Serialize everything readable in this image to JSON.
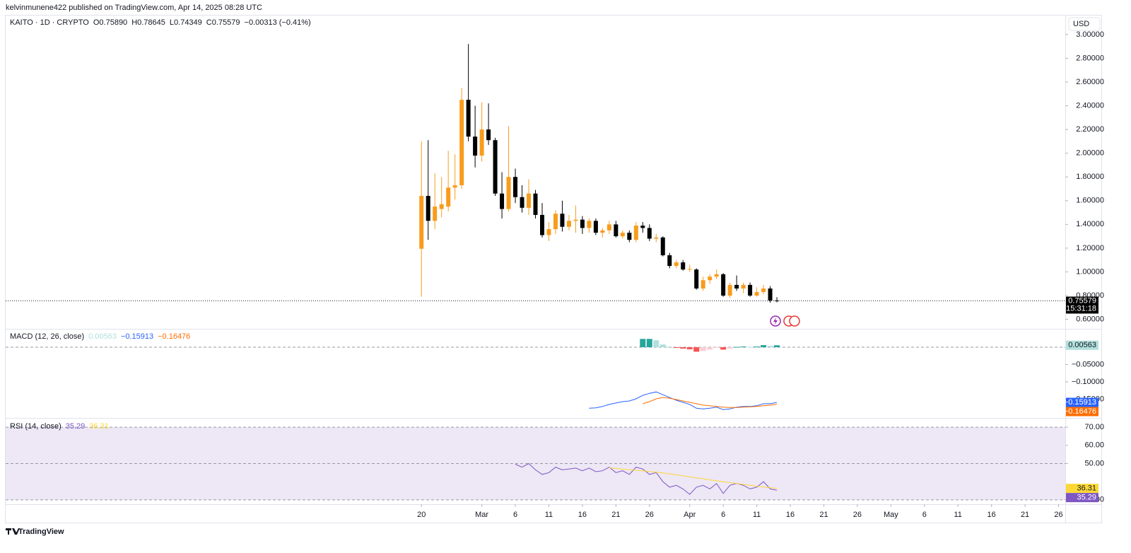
{
  "header": "kelvinmunene422 published on TradingView.com, Apr 14, 2025 08:28 UTC",
  "footer": "TradingView",
  "chart_data": [
    {
      "type": "candlestick",
      "currency": "USD",
      "symbol": "KAITO · 1D · CRYPTO",
      "legend_items": [
        "O0.75890",
        "H0.78645",
        "L0.74349",
        "C0.75579",
        "−0.00313 (−0.41%)"
      ],
      "last_price_label": "0.75579",
      "countdown": "15:31:18",
      "up_color": "#f89c1c",
      "down_color": "#000000",
      "x": [
        "2025-02-20",
        "2025-02-21",
        "2025-02-22",
        "2025-02-23",
        "2025-02-24",
        "2025-02-25",
        "2025-02-26",
        "2025-02-27",
        "2025-02-28",
        "2025-03-01",
        "2025-03-02",
        "2025-03-03",
        "2025-03-04",
        "2025-03-05",
        "2025-03-06",
        "2025-03-07",
        "2025-03-08",
        "2025-03-09",
        "2025-03-10",
        "2025-03-11",
        "2025-03-12",
        "2025-03-13",
        "2025-03-14",
        "2025-03-15",
        "2025-03-16",
        "2025-03-17",
        "2025-03-18",
        "2025-03-19",
        "2025-03-20",
        "2025-03-21",
        "2025-03-22",
        "2025-03-23",
        "2025-03-24",
        "2025-03-25",
        "2025-03-26",
        "2025-03-27",
        "2025-03-28",
        "2025-03-29",
        "2025-03-30",
        "2025-03-31",
        "2025-04-01",
        "2025-04-02",
        "2025-04-03",
        "2025-04-04",
        "2025-04-05",
        "2025-04-06",
        "2025-04-07",
        "2025-04-08",
        "2025-04-09",
        "2025-04-10",
        "2025-04-11",
        "2025-04-12",
        "2025-04-13",
        "2025-04-14"
      ],
      "open": [
        1.195,
        1.64,
        1.43,
        1.53,
        1.55,
        1.71,
        1.73,
        2.45,
        2.14,
        1.98,
        2.2,
        2.11,
        1.66,
        1.53,
        1.8,
        1.63,
        1.54,
        1.66,
        1.48,
        1.31,
        1.36,
        1.49,
        1.38,
        1.43,
        1.44,
        1.37,
        1.43,
        1.33,
        1.35,
        1.4,
        1.3,
        1.33,
        1.27,
        1.39,
        1.37,
        1.28,
        1.29,
        1.14,
        1.05,
        1.08,
        1.02,
        1.02,
        0.86,
        0.93,
        0.96,
        0.98,
        0.8,
        0.89,
        0.86,
        0.89,
        0.8,
        0.83,
        0.86,
        0.7589
      ],
      "high": [
        2.1,
        2.11,
        1.83,
        1.8,
        2.02,
        1.99,
        2.55,
        2.92,
        2.4,
        2.43,
        2.42,
        2.13,
        1.84,
        2.23,
        1.87,
        1.73,
        1.78,
        1.69,
        1.58,
        1.42,
        1.52,
        1.6,
        1.48,
        1.56,
        1.47,
        1.45,
        1.45,
        1.37,
        1.43,
        1.43,
        1.35,
        1.35,
        1.42,
        1.42,
        1.4,
        1.32,
        1.3,
        1.16,
        1.1,
        1.1,
        1.06,
        1.03,
        0.96,
        0.98,
        1.02,
        0.99,
        0.91,
        0.97,
        0.91,
        0.91,
        0.87,
        0.89,
        0.88,
        0.78645
      ],
      "low": [
        0.79,
        1.27,
        1.36,
        1.46,
        1.51,
        1.61,
        1.7,
        2.1,
        1.88,
        1.93,
        2.07,
        1.64,
        1.45,
        1.51,
        1.58,
        1.5,
        1.48,
        1.45,
        1.29,
        1.26,
        1.32,
        1.34,
        1.35,
        1.33,
        1.32,
        1.33,
        1.31,
        1.29,
        1.32,
        1.29,
        1.28,
        1.25,
        1.25,
        1.33,
        1.26,
        1.25,
        1.13,
        1.03,
        1.03,
        1.01,
        1.0,
        0.85,
        0.84,
        0.9,
        0.94,
        0.79,
        0.78,
        0.84,
        0.82,
        0.79,
        0.79,
        0.81,
        0.74,
        0.74349
      ],
      "close": [
        1.64,
        1.43,
        1.55,
        1.57,
        1.71,
        1.73,
        2.45,
        2.14,
        1.98,
        2.2,
        2.11,
        1.66,
        1.53,
        1.8,
        1.63,
        1.54,
        1.66,
        1.48,
        1.31,
        1.36,
        1.49,
        1.38,
        1.43,
        1.44,
        1.37,
        1.43,
        1.33,
        1.35,
        1.4,
        1.3,
        1.33,
        1.27,
        1.39,
        1.37,
        1.28,
        1.29,
        1.14,
        1.05,
        1.08,
        1.02,
        1.025,
        0.86,
        0.93,
        0.96,
        0.98,
        0.8,
        0.89,
        0.86,
        0.89,
        0.8,
        0.83,
        0.86,
        0.7589,
        0.75579
      ],
      "xlim": [
        "2024-12-20",
        "2025-05-27"
      ],
      "xticks": [
        {
          "value": "2025-02-20",
          "label": "20"
        },
        {
          "value": "2025-03-01",
          "label": "Mar"
        },
        {
          "value": "2025-03-06",
          "label": "6"
        },
        {
          "value": "2025-03-11",
          "label": "11"
        },
        {
          "value": "2025-03-16",
          "label": "16"
        },
        {
          "value": "2025-03-21",
          "label": "21"
        },
        {
          "value": "2025-03-26",
          "label": "26"
        },
        {
          "value": "2025-04-01",
          "label": "Apr"
        },
        {
          "value": "2025-04-06",
          "label": "6"
        },
        {
          "value": "2025-04-11",
          "label": "11"
        },
        {
          "value": "2025-04-16",
          "label": "16"
        },
        {
          "value": "2025-04-21",
          "label": "21"
        },
        {
          "value": "2025-04-26",
          "label": "26"
        },
        {
          "value": "2025-05-01",
          "label": "May"
        },
        {
          "value": "2025-05-06",
          "label": "6"
        },
        {
          "value": "2025-05-11",
          "label": "11"
        },
        {
          "value": "2025-05-16",
          "label": "16"
        },
        {
          "value": "2025-05-21",
          "label": "21"
        },
        {
          "value": "2025-05-26",
          "label": "26"
        }
      ],
      "ylim": [
        0.52,
        3.16
      ],
      "yticks": [
        {
          "value": 0.6,
          "label": "0.60000"
        },
        {
          "value": 0.8,
          "label": "0.80000"
        },
        {
          "value": 1,
          "label": "1.00000"
        },
        {
          "value": 1.2,
          "label": "1.20000"
        },
        {
          "value": 1.4,
          "label": "1.40000"
        },
        {
          "value": 1.6,
          "label": "1.60000"
        },
        {
          "value": 1.8,
          "label": "1.80000"
        },
        {
          "value": 2,
          "label": "2.00000"
        },
        {
          "value": 2.2,
          "label": "2.20000"
        },
        {
          "value": 2.4,
          "label": "2.40000"
        },
        {
          "value": 2.6,
          "label": "2.60000"
        },
        {
          "value": 2.8,
          "label": "2.80000"
        },
        {
          "value": 3,
          "label": "3.00000"
        }
      ]
    },
    {
      "type": "macd",
      "title": "MACD (12, 26, close)",
      "histogram": {
        "colors": [
          "#26a69a",
          "#b2dfdb",
          "#ff5252",
          "#ffcdd2"
        ],
        "last_label": "0.00563",
        "values": [
          null,
          null,
          null,
          null,
          null,
          null,
          null,
          null,
          null,
          null,
          null,
          null,
          null,
          null,
          null,
          null,
          null,
          null,
          null,
          null,
          null,
          null,
          null,
          null,
          null,
          null,
          null,
          null,
          null,
          null,
          null,
          null,
          null,
          0.024,
          0.024,
          0.02,
          0.008,
          0.002,
          -0.002,
          -0.004,
          -0.006,
          -0.013,
          -0.011,
          -0.007,
          -0.002,
          -0.007,
          -0.004,
          0.001,
          0.002,
          0.001,
          0.002,
          0.006,
          0.004,
          0.00563
        ]
      },
      "series": [
        {
          "color": "#2962ff",
          "last_label": "−0.15913",
          "values": [
            null,
            null,
            null,
            null,
            null,
            null,
            null,
            null,
            null,
            null,
            null,
            null,
            null,
            null,
            null,
            null,
            null,
            null,
            null,
            null,
            null,
            null,
            null,
            null,
            null,
            -0.176,
            -0.175,
            -0.171,
            -0.165,
            -0.161,
            -0.157,
            -0.155,
            -0.149,
            -0.139,
            -0.133,
            -0.129,
            -0.137,
            -0.145,
            -0.153,
            -0.159,
            -0.165,
            -0.176,
            -0.178,
            -0.176,
            -0.173,
            -0.18,
            -0.178,
            -0.173,
            -0.171,
            -0.171,
            -0.169,
            -0.163,
            -0.163,
            -0.15913
          ]
        },
        {
          "color": "#ff6d00",
          "last_label": "−0.16476",
          "values": [
            null,
            null,
            null,
            null,
            null,
            null,
            null,
            null,
            null,
            null,
            null,
            null,
            null,
            null,
            null,
            null,
            null,
            null,
            null,
            null,
            null,
            null,
            null,
            null,
            null,
            null,
            null,
            null,
            null,
            null,
            null,
            null,
            null,
            -0.163,
            -0.157,
            -0.149,
            -0.145,
            -0.147,
            -0.151,
            -0.155,
            -0.159,
            -0.163,
            -0.167,
            -0.169,
            -0.171,
            -0.173,
            -0.174,
            -0.174,
            -0.173,
            -0.172,
            -0.171,
            -0.169,
            -0.167,
            -0.16476
          ]
        }
      ],
      "ylim": [
        -0.204,
        0.051
      ],
      "yticks": [
        {
          "value": -0.05,
          "label": "−0.05000"
        },
        {
          "value": -0.1,
          "label": "−0.10000"
        },
        {
          "value": -0.15,
          "label": "−0.15000"
        }
      ]
    },
    {
      "type": "rsi",
      "title": "RSI (14, close)",
      "band": {
        "upper": 70,
        "middle": 50,
        "lower": 30,
        "color": "#ede7f6"
      },
      "series": [
        {
          "color": "#7e57c2",
          "last_label": "35.29",
          "values": [
            null,
            null,
            null,
            null,
            null,
            null,
            null,
            null,
            null,
            null,
            null,
            null,
            null,
            null,
            49.6,
            48,
            50,
            46.5,
            44,
            45,
            48,
            46.5,
            47,
            47.5,
            46,
            47.5,
            45.5,
            46,
            48,
            45,
            46,
            44,
            48,
            47,
            44,
            45,
            40,
            37,
            38,
            36,
            33,
            37,
            38,
            36,
            39,
            33.5,
            38,
            39,
            38,
            36,
            37,
            40,
            36,
            35.29
          ]
        },
        {
          "color": "#fdd835",
          "last_label": "36.31",
          "values": [
            null,
            null,
            null,
            null,
            null,
            null,
            null,
            null,
            null,
            null,
            null,
            null,
            null,
            null,
            null,
            null,
            null,
            null,
            null,
            null,
            null,
            null,
            null,
            null,
            null,
            null,
            null,
            null,
            47.7,
            47.3,
            46.9,
            46.6,
            46.3,
            46.0,
            45.6,
            45.2,
            44.8,
            44.3,
            43.8,
            43.3,
            42.7,
            42.1,
            41.6,
            41.0,
            40.5,
            40.0,
            39.5,
            39.0,
            38.5,
            38.0,
            37.5,
            37.1,
            36.7,
            36.31
          ]
        }
      ],
      "ylim": [
        27.6,
        74.7
      ],
      "yticks": [
        {
          "value": 70,
          "label": "70.00"
        },
        {
          "value": 60,
          "label": "60.00"
        },
        {
          "value": 50,
          "label": "50.00"
        },
        {
          "value": 30,
          "label": "30.00"
        }
      ]
    }
  ]
}
